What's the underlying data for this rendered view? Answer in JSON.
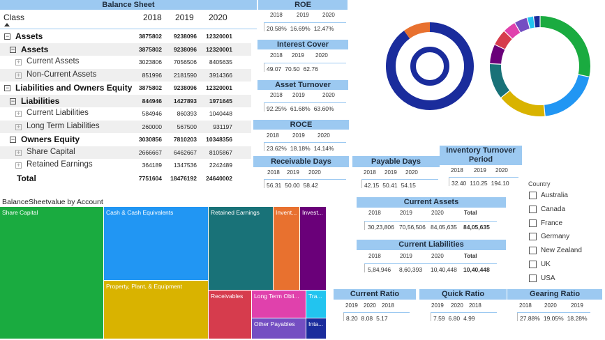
{
  "balance_sheet": {
    "title": "Balance Sheet",
    "col_class": "Class",
    "years": [
      "2018",
      "2019",
      "2020"
    ],
    "rows": [
      {
        "label": "Assets",
        "values": [
          "3875802",
          "9238096",
          "12320001"
        ]
      },
      {
        "label": "Assets",
        "values": [
          "3875802",
          "9238096",
          "12320001"
        ]
      },
      {
        "label": "Current Assets",
        "values": [
          "3023806",
          "7056506",
          "8405635"
        ]
      },
      {
        "label": "Non-Current Assets",
        "values": [
          "851996",
          "2181590",
          "3914366"
        ]
      },
      {
        "label": "Liabilities and Owners Equity",
        "values": [
          "3875802",
          "9238096",
          "12320001"
        ]
      },
      {
        "label": "Liabilities",
        "values": [
          "844946",
          "1427893",
          "1971645"
        ]
      },
      {
        "label": "Current Liabilities",
        "values": [
          "584946",
          "860393",
          "1040448"
        ]
      },
      {
        "label": "Long Term Liabilities",
        "values": [
          "260000",
          "567500",
          "931197"
        ]
      },
      {
        "label": "Owners Equity",
        "values": [
          "3030856",
          "7810203",
          "10348356"
        ]
      },
      {
        "label": "Share Capital",
        "values": [
          "2666667",
          "6462667",
          "8105867"
        ]
      },
      {
        "label": "Retained Earnings",
        "values": [
          "364189",
          "1347536",
          "2242489"
        ]
      },
      {
        "label": "Total",
        "values": [
          "7751604",
          "18476192",
          "24640002"
        ]
      }
    ]
  },
  "kpis": {
    "roe": {
      "title": "ROE",
      "years": [
        "2018",
        "2019",
        "2020"
      ],
      "values": [
        "20.58%",
        "16.69%",
        "12.47%"
      ]
    },
    "interest_cover": {
      "title": "Interest Cover",
      "years": [
        "2018",
        "2019",
        "2020"
      ],
      "values": [
        "49.07",
        "70.50",
        "62.76"
      ]
    },
    "asset_turnover": {
      "title": "Asset Turnover",
      "years": [
        "2018",
        "2019",
        "2020"
      ],
      "values": [
        "92.25%",
        "61.68%",
        "63.60%"
      ]
    },
    "roce": {
      "title": "ROCE",
      "years": [
        "2018",
        "2019",
        "2020"
      ],
      "values": [
        "23.62%",
        "18.18%",
        "14.14%"
      ]
    },
    "receivable_days": {
      "title": "Receivable Days",
      "years": [
        "2018",
        "2019",
        "2020"
      ],
      "values": [
        "56.31",
        "50.00",
        "58.42"
      ]
    },
    "payable_days": {
      "title": "Payable Days",
      "years": [
        "2018",
        "2019",
        "2020"
      ],
      "values": [
        "42.15",
        "50.41",
        "54.15"
      ]
    },
    "inventory_turnover": {
      "title": "Inventory Turnover Period",
      "years": [
        "2018",
        "2019",
        "2020"
      ],
      "values": [
        "32.40",
        "110.25",
        "194.10"
      ]
    },
    "current_assets": {
      "title": "Current Assets",
      "years": [
        "2018",
        "2019",
        "2020"
      ],
      "total_label": "Total",
      "values": [
        "30,23,806",
        "70,56,506",
        "84,05,635"
      ],
      "total": "84,05,635"
    },
    "current_liabilities": {
      "title": "Current Liabilities",
      "years": [
        "2018",
        "2019",
        "2020"
      ],
      "total_label": "Total",
      "values": [
        "5,84,946",
        "8,60,393",
        "10,40,448"
      ],
      "total": "10,40,448"
    },
    "current_ratio": {
      "title": "Current Ratio",
      "years": [
        "2019",
        "2020",
        "2018"
      ],
      "values": [
        "8.20",
        "8.08",
        "5.17"
      ]
    },
    "quick_ratio": {
      "title": "Quick Ratio",
      "years": [
        "2019",
        "2020",
        "2018"
      ],
      "values": [
        "7.59",
        "6.80",
        "4.99"
      ]
    },
    "gearing_ratio": {
      "title": "Gearing Ratio",
      "years": [
        "2018",
        "2020",
        "2019"
      ],
      "values": [
        "27.88%",
        "19.05%",
        "18.28%"
      ]
    }
  },
  "treemap": {
    "title": "BalanceSheetvalue by Account",
    "tiles": [
      {
        "label": "Share Capital",
        "color": "#1aab40"
      },
      {
        "label": "Cash & Cash Equivalents",
        "color": "#2196f3"
      },
      {
        "label": "Property, Plant, & Equipment",
        "color": "#d9b300"
      },
      {
        "label": "Retained Earnings",
        "color": "#197278"
      },
      {
        "label": "Invent...",
        "color": "#e8712f"
      },
      {
        "label": "Invest...",
        "color": "#6a0079"
      },
      {
        "label": "Receivables",
        "color": "#d63c4d"
      },
      {
        "label": "Long Term Obli...",
        "color": "#e041ac"
      },
      {
        "label": "Tra...",
        "color": "#22c4ef"
      },
      {
        "label": "Other Payables",
        "color": "#744ec2"
      },
      {
        "label": "Inta...",
        "color": "#1a2c9c"
      }
    ]
  },
  "donuts": {
    "left": {
      "outer": [
        {
          "value": 90,
          "color": "#1a2c9c"
        },
        {
          "value": 10,
          "color": "#e8712f"
        }
      ],
      "inner": [
        {
          "value": 100,
          "color": "#1a2c9c"
        }
      ]
    },
    "right": [
      {
        "value": 27,
        "color": "#1aab40"
      },
      {
        "value": 19,
        "color": "#2196f3"
      },
      {
        "value": 15,
        "color": "#d9b300"
      },
      {
        "value": 11,
        "color": "#197278"
      },
      {
        "value": 6,
        "color": "#6a0079"
      },
      {
        "value": 5,
        "color": "#d63c4d"
      },
      {
        "value": 4,
        "color": "#e041ac"
      },
      {
        "value": 4,
        "color": "#744ec2"
      },
      {
        "value": 2,
        "color": "#22c4ef"
      },
      {
        "value": 2,
        "color": "#1a2c9c"
      }
    ]
  },
  "country_filter": {
    "title": "Country",
    "options": [
      "Australia",
      "Canada",
      "France",
      "Germany",
      "New Zealand",
      "UK",
      "USA"
    ]
  }
}
